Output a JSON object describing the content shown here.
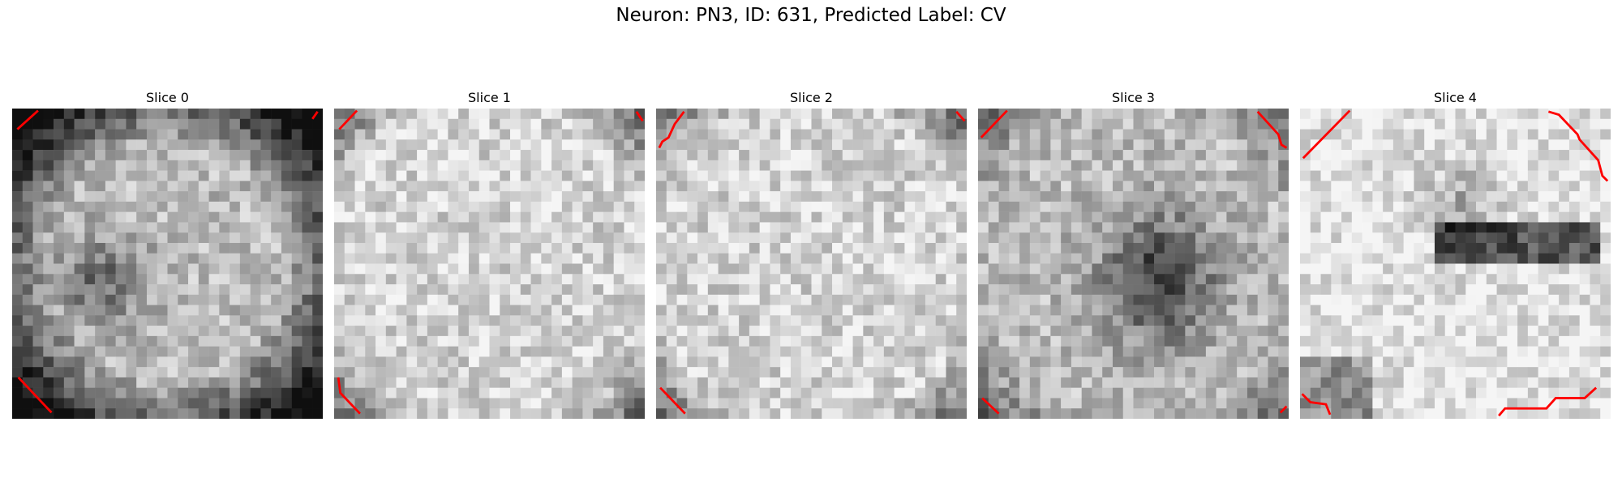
{
  "figure": {
    "title": "Neuron: PN3, ID: 631, Predicted Label: CV"
  },
  "contour_color": "#ff0000",
  "colormap": "gray",
  "slices": [
    {
      "title": "Slice 0",
      "seed": 101,
      "darkness": "edges-and-center"
    },
    {
      "title": "Slice 1",
      "seed": 202,
      "darkness": "light-uniform"
    },
    {
      "title": "Slice 2",
      "seed": 303,
      "darkness": "light-uniform"
    },
    {
      "title": "Slice 3",
      "seed": 404,
      "darkness": "dark-center-blob"
    },
    {
      "title": "Slice 4",
      "seed": 505,
      "darkness": "dark-horizontal-band"
    }
  ]
}
